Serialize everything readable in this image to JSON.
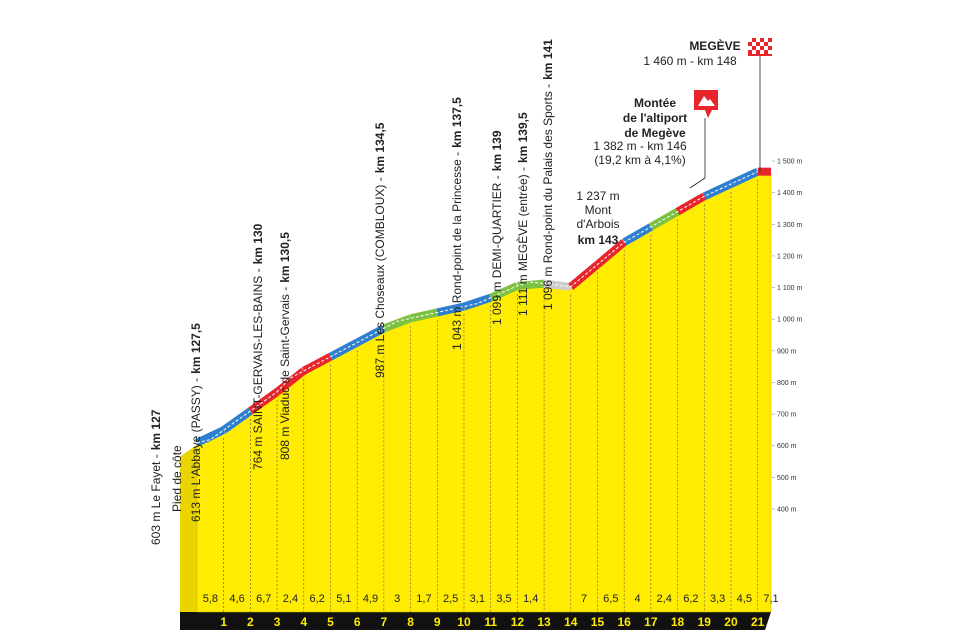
{
  "chart_data": {
    "type": "area",
    "profile": {
      "x": [
        127,
        127.5,
        130,
        130.5,
        134.5,
        137.5,
        139,
        139.5,
        141,
        143,
        146,
        148
      ],
      "values": [
        603,
        613,
        764,
        808,
        987,
        1043,
        1099,
        1111,
        1096,
        1237,
        1382,
        1460
      ],
      "color": "#ffec00"
    },
    "xlim": [
      127,
      148.5
    ],
    "xticks": [
      {
        "value": 128,
        "label": "1"
      },
      {
        "value": 129,
        "label": "2"
      },
      {
        "value": 130,
        "label": "3"
      },
      {
        "value": 131,
        "label": "4"
      },
      {
        "value": 132,
        "label": "5"
      },
      {
        "value": 133,
        "label": "6"
      },
      {
        "value": 134,
        "label": "7"
      },
      {
        "value": 135,
        "label": "8"
      },
      {
        "value": 136,
        "label": "9"
      },
      {
        "value": 137,
        "label": "10"
      },
      {
        "value": 138,
        "label": "11"
      },
      {
        "value": 139,
        "label": "12"
      },
      {
        "value": 140,
        "label": "13"
      },
      {
        "value": 141,
        "label": "14"
      },
      {
        "value": 142,
        "label": "15"
      },
      {
        "value": 143,
        "label": "16"
      },
      {
        "value": 144,
        "label": "17"
      },
      {
        "value": 145,
        "label": "18"
      },
      {
        "value": 146,
        "label": "19"
      },
      {
        "value": 147,
        "label": "20"
      },
      {
        "value": 148,
        "label": "21"
      }
    ],
    "ylim": [
      400,
      1500
    ],
    "yticks": [
      {
        "value": 400,
        "label": "400 m"
      },
      {
        "value": 500,
        "label": "500 m"
      },
      {
        "value": 600,
        "label": "600 m"
      },
      {
        "value": 700,
        "label": "700 m"
      },
      {
        "value": 800,
        "label": "800 m"
      },
      {
        "value": 900,
        "label": "900 m"
      },
      {
        "value": 1000,
        "label": "1 000 m"
      },
      {
        "value": 1100,
        "label": "1 100 m"
      },
      {
        "value": 1200,
        "label": "1 200 m"
      },
      {
        "value": 1300,
        "label": "1 300 m"
      },
      {
        "value": 1400,
        "label": "1 400 m"
      },
      {
        "value": 1500,
        "label": "1 500 m"
      }
    ],
    "gradients": {
      "values": [
        5.8,
        4.6,
        6.7,
        2.4,
        6.2,
        5.1,
        4.9,
        3,
        1.7,
        2.5,
        3.1,
        3.5,
        1.4,
        null,
        7,
        6.5,
        4,
        2.4,
        6.2,
        3.3,
        4.5,
        7.1
      ],
      "value_labels": [
        "5,8",
        "4,6",
        "6,7",
        "2,4",
        "6,2",
        "5,1",
        "4,9",
        "3",
        "1,7",
        "2,5",
        "3,1",
        "3,5",
        "1,4",
        null,
        "7",
        "6,5",
        "4",
        "2,4",
        "6,2",
        "3,3",
        "4,5",
        "7,1"
      ],
      "colors": [
        "#2f7fd0",
        "#2f7fd0",
        "#e8242c",
        "#e8242c",
        "#e8242c",
        "#2f7fd0",
        "#2f7fd0",
        "#7cc142",
        "#7cc142",
        "#2f7fd0",
        "#2f7fd0",
        "#7cc142",
        "#7cc142",
        "#cccccc",
        "#e8242c",
        "#e8242c",
        "#2f7fd0",
        "#7cc142",
        "#e8242c",
        "#2f7fd0",
        "#2f7fd0",
        "#e8242c"
      ]
    },
    "annotations": [
      {
        "label": "603 m Le Fayet -",
        "km_label": "km 127",
        "note": "Pied de côte"
      },
      {
        "label": "613 m L'Abbaye (PASSY) -",
        "km_label": "km 127,5"
      },
      {
        "label": "764 m SAINT-GERVAIS-LES-BAINS -",
        "km_label": "km 130"
      },
      {
        "label": "808 m Viaduc de Saint-Gervais -",
        "km_label": "km 130,5"
      },
      {
        "label": "987 m Les Choseaux (COMBLOUX) -",
        "km_label": "km 134,5"
      },
      {
        "label": "1 043 m Rond-point de la Princesse -",
        "km_label": "km 137,5"
      },
      {
        "label": "1 099 m DEMI-QUARTIER -",
        "km_label": "km 139"
      },
      {
        "label": "1 111 m MEGÈVE (entrée) -",
        "km_label": "km 139,5"
      },
      {
        "label": "1 096 m Rond-point du Palais des Sports -",
        "km_label": "km 141"
      }
    ],
    "summit": {
      "lines": [
        "1 237 m",
        "Mont",
        "d'Arbois"
      ],
      "km_label": "km 143"
    },
    "climb": {
      "lines": [
        "Montée",
        "de l'altiport",
        "de Megève"
      ],
      "details": [
        "1 382 m - km 146",
        "(19,2 km à 4,1%)"
      ]
    },
    "finish": {
      "name": "MEGÈVE",
      "details": "1 460 m - km 148"
    }
  }
}
